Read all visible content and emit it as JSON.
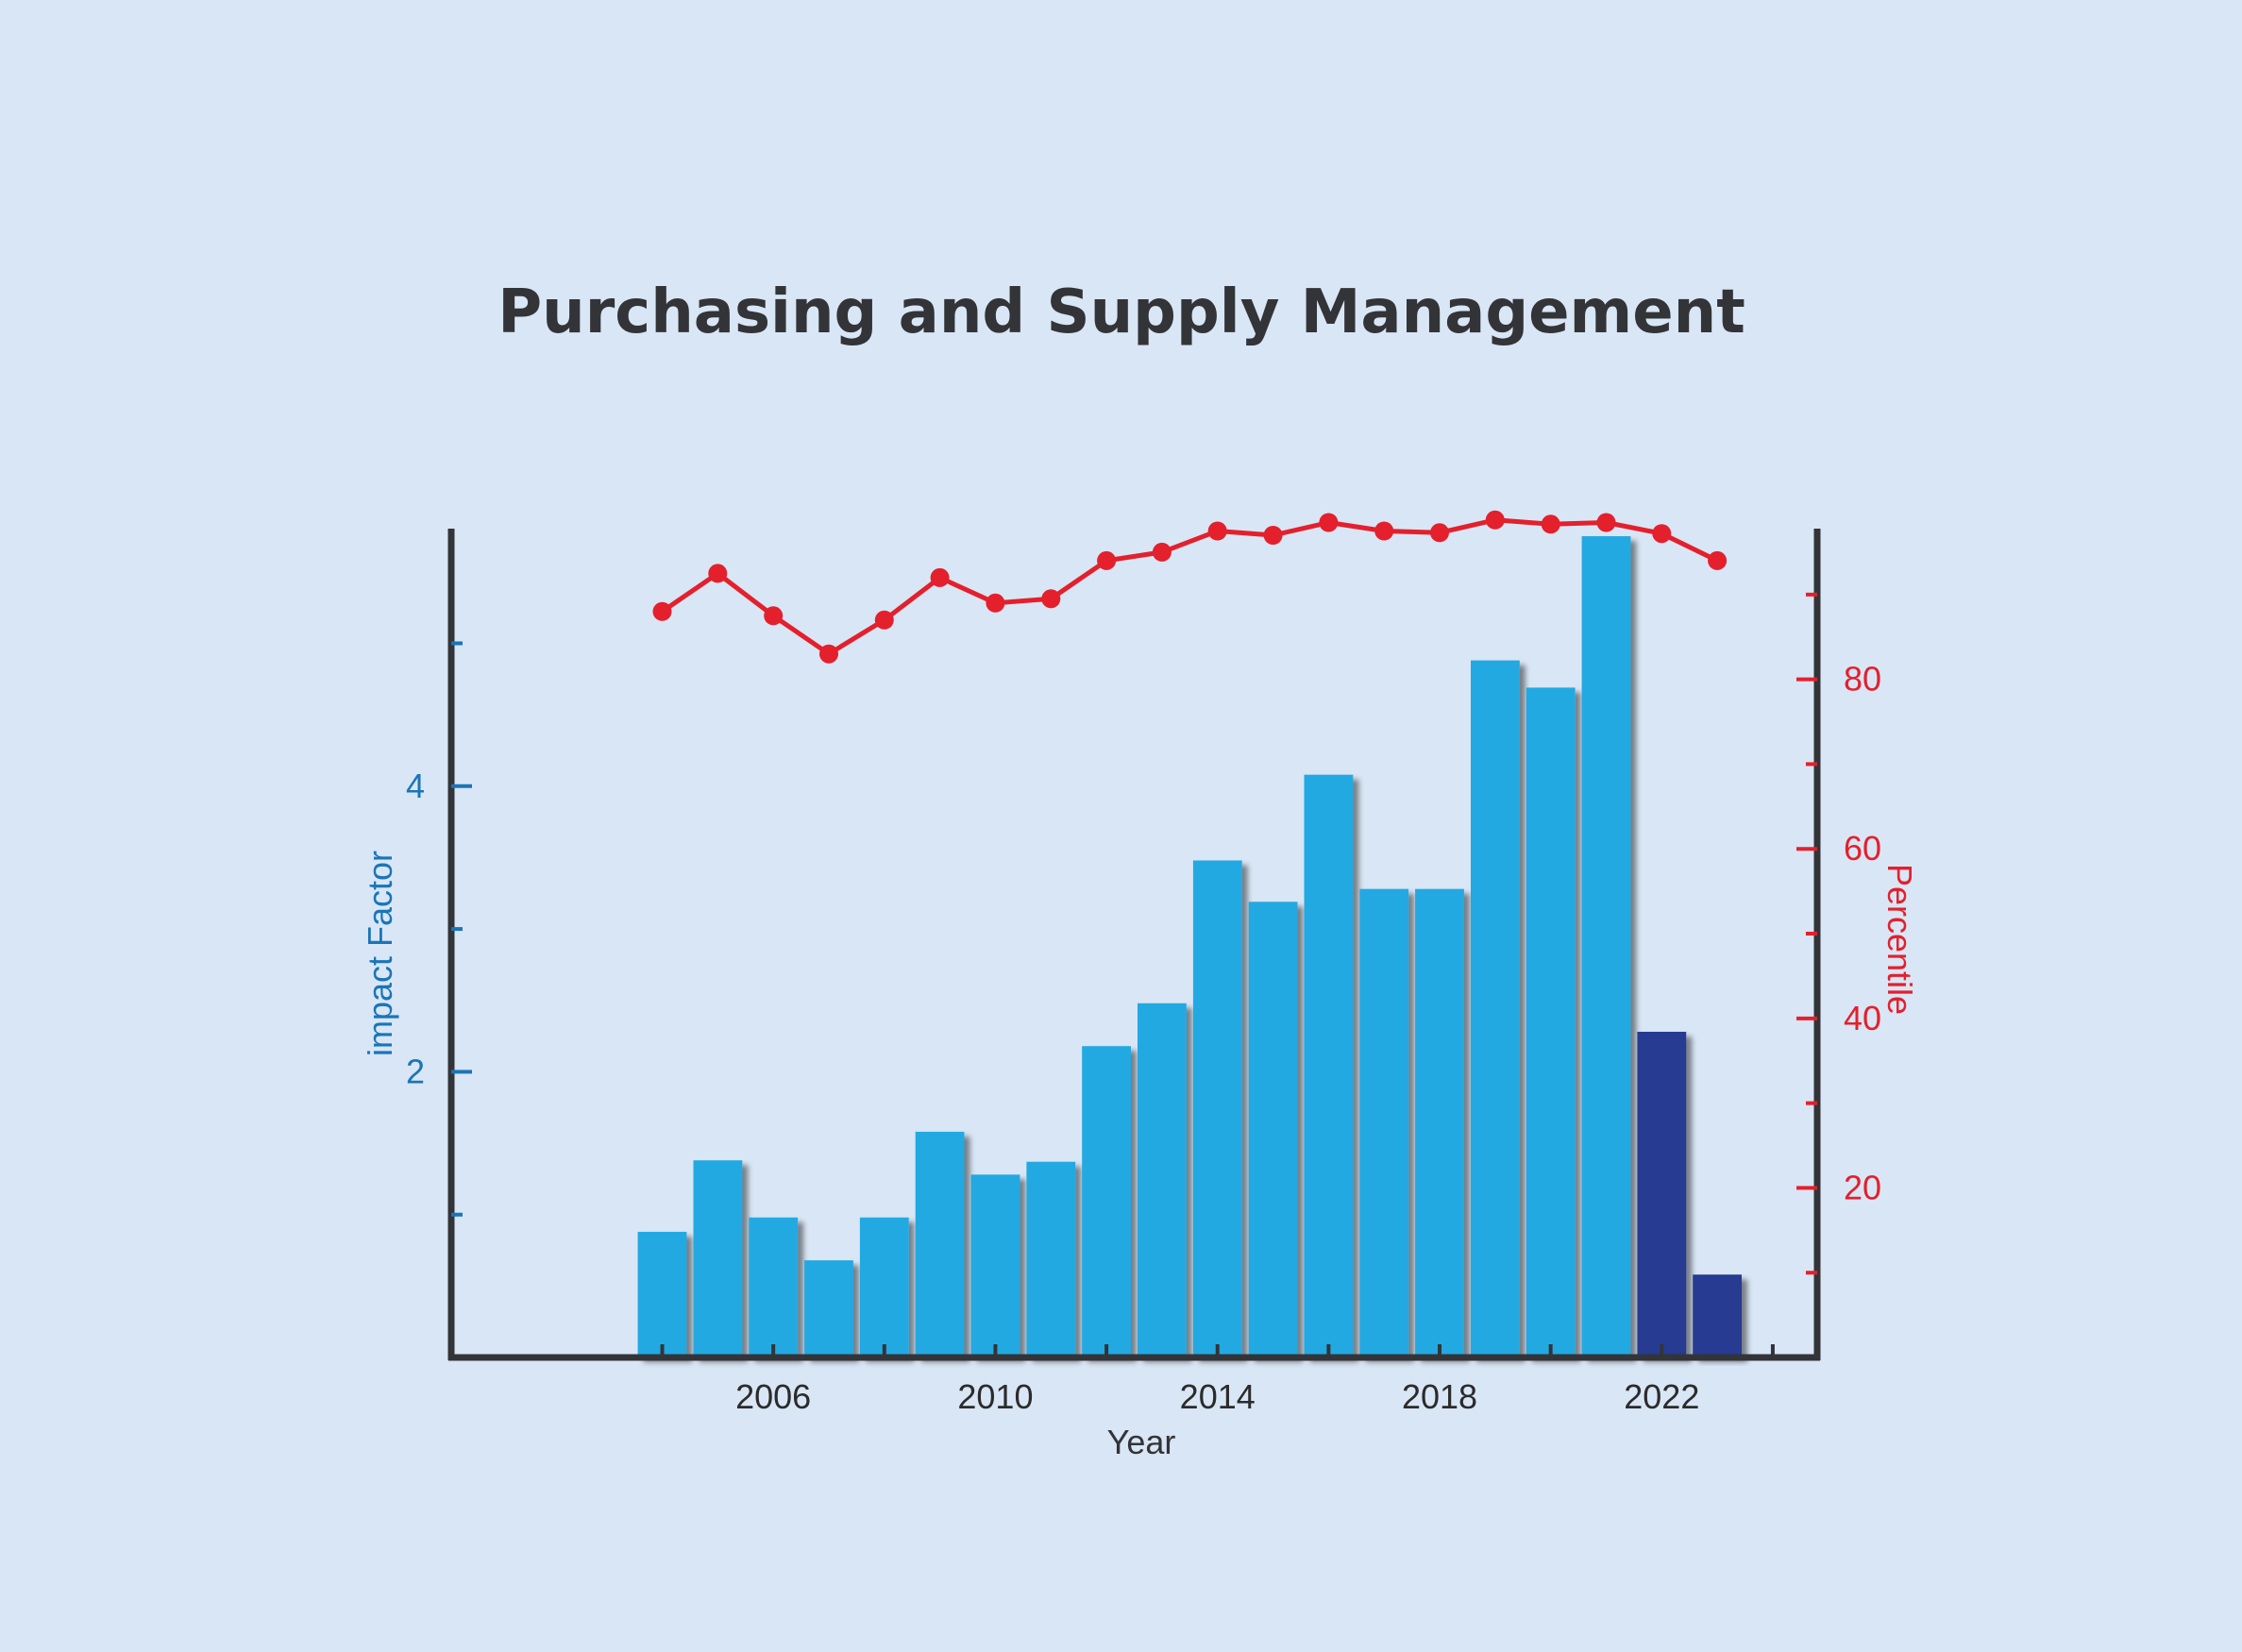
{
  "chart_data": {
    "type": "bar",
    "title": "Purchasing and Supply Management",
    "xlabel": "Year",
    "ylabel_left": "impact Factor",
    "ylabel_right": "Percentile",
    "x": [
      2004,
      2005,
      2006,
      2007,
      2008,
      2009,
      2010,
      2011,
      2012,
      2013,
      2014,
      2015,
      2016,
      2017,
      2018,
      2019,
      2020,
      2021,
      2022,
      2023
    ],
    "x_ticks": [
      2006,
      2010,
      2014,
      2018,
      2022
    ],
    "x_tick_labels": [
      "2006",
      "2010",
      "2014",
      "2018",
      "2022"
    ],
    "xlim": [
      2000.2,
      2024.8
    ],
    "series": [
      {
        "axis": "left",
        "type": "bar",
        "values": [
          0.88,
          1.38,
          0.98,
          0.68,
          0.98,
          1.58,
          1.28,
          1.37,
          2.18,
          2.48,
          3.48,
          3.19,
          4.08,
          3.28,
          3.28,
          4.88,
          4.69,
          5.75,
          2.28,
          0.58
        ],
        "colors": [
          "#22a9e1",
          "#22a9e1",
          "#22a9e1",
          "#22a9e1",
          "#22a9e1",
          "#22a9e1",
          "#22a9e1",
          "#22a9e1",
          "#22a9e1",
          "#22a9e1",
          "#22a9e1",
          "#22a9e1",
          "#22a9e1",
          "#22a9e1",
          "#22a9e1",
          "#22a9e1",
          "#22a9e1",
          "#22a9e1",
          "#283a91",
          "#283a91"
        ]
      },
      {
        "axis": "right",
        "type": "line",
        "values": [
          88,
          92.5,
          87.5,
          83,
          87,
          92,
          89,
          89.5,
          94,
          95,
          97.5,
          97,
          98.5,
          97.5,
          97.3,
          98.8,
          98.3,
          98.5,
          97.2,
          94
        ]
      }
    ],
    "ylim_left": [
      0,
      5.75
    ],
    "yticks_left": [
      2,
      4
    ],
    "yticks_left_minor": [
      1,
      3,
      5
    ],
    "ylim_right": [
      0,
      98
    ],
    "yticks_right": [
      20,
      40,
      60,
      80
    ],
    "yticks_right_minor": [
      10,
      30,
      50,
      70,
      90
    ],
    "grid": false,
    "colors": {
      "background": "#d9e6f5",
      "bar_primary": "#22a9e1",
      "bar_recent": "#283a91",
      "line": "#e3202c",
      "left_axis": "#1a75b8",
      "right_axis": "#e3202c",
      "axis_frame": "#333438",
      "title": "#333438"
    }
  }
}
